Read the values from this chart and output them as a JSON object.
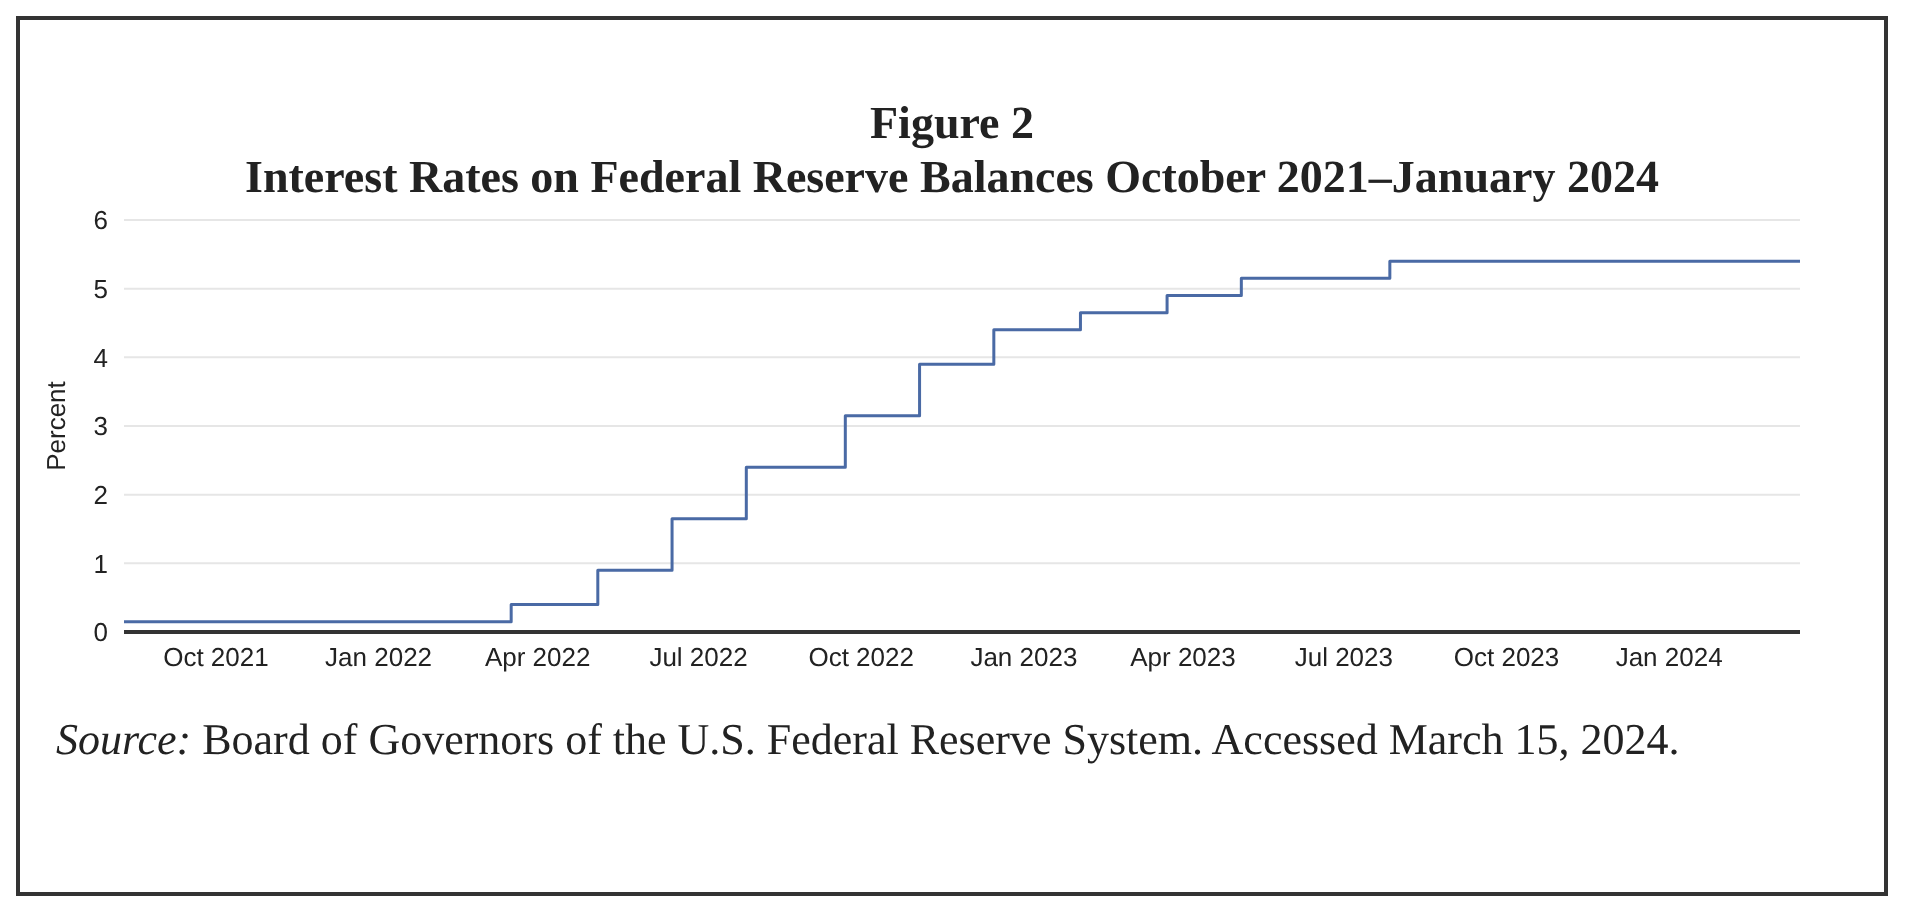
{
  "chart_data": {
    "type": "step",
    "title": "Figure 2",
    "subtitle": "Interest Rates on Federal Reserve Balances October 2021–January 2024",
    "ylabel": "Percent",
    "x": [
      "2021-08-10",
      "2022-03-17",
      "2022-05-05",
      "2022-06-16",
      "2022-07-28",
      "2022-09-22",
      "2022-11-03",
      "2022-12-15",
      "2023-02-02",
      "2023-03-23",
      "2023-05-04",
      "2023-07-27",
      "2024-03-15"
    ],
    "series": [
      {
        "color": "#4a6aa5",
        "values": [
          0.15,
          0.4,
          0.9,
          1.65,
          2.4,
          3.15,
          3.9,
          4.4,
          4.65,
          4.9,
          5.15,
          5.4,
          5.4
        ]
      }
    ],
    "xlim": [
      "2021-08-10",
      "2024-03-15"
    ],
    "xticks": [
      {
        "value": "2021-10-01",
        "label": "Oct 2021"
      },
      {
        "value": "2022-01-01",
        "label": "Jan 2022"
      },
      {
        "value": "2022-04-01",
        "label": "Apr 2022"
      },
      {
        "value": "2022-07-01",
        "label": "Jul 2022"
      },
      {
        "value": "2022-10-01",
        "label": "Oct 2022"
      },
      {
        "value": "2023-01-01",
        "label": "Jan 2023"
      },
      {
        "value": "2023-04-01",
        "label": "Apr 2023"
      },
      {
        "value": "2023-07-01",
        "label": "Jul 2023"
      },
      {
        "value": "2023-10-01",
        "label": "Oct 2023"
      },
      {
        "value": "2024-01-01",
        "label": "Jan 2024"
      }
    ],
    "ylim": [
      0,
      6
    ],
    "yticks": [
      0,
      1,
      2,
      3,
      4,
      5,
      6
    ],
    "grid": "y",
    "legend": false,
    "annotations": [
      "Source: Board of Governors of the U.S. Federal Reserve System. Accessed March 15, 2024."
    ]
  }
}
